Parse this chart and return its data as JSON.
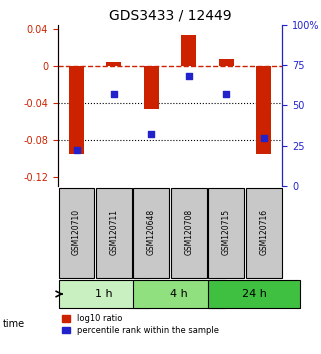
{
  "title": "GDS3433 / 12449",
  "samples": [
    "GSM120710",
    "GSM120711",
    "GSM120648",
    "GSM120708",
    "GSM120715",
    "GSM120716"
  ],
  "log10_ratio": [
    -0.095,
    0.005,
    -0.047,
    0.034,
    0.008,
    -0.095
  ],
  "percentile_rank": [
    22,
    57,
    32,
    68,
    57,
    30
  ],
  "time_groups": [
    {
      "label": "1 h",
      "samples": [
        0,
        1
      ],
      "color": "#c8f0c0"
    },
    {
      "label": "4 h",
      "samples": [
        2,
        3
      ],
      "color": "#90e080"
    },
    {
      "label": "24 h",
      "samples": [
        4,
        5
      ],
      "color": "#40c040"
    }
  ],
  "ylim_left": [
    -0.13,
    0.045
  ],
  "ylim_right": [
    0,
    100
  ],
  "yticks_left": [
    0.04,
    0,
    -0.04,
    -0.08,
    -0.12
  ],
  "yticks_right": [
    100,
    75,
    50,
    25,
    0
  ],
  "bar_color": "#cc2200",
  "dot_color": "#2222cc",
  "background_color": "#ffffff",
  "grid_color": "#000000",
  "dashed_zero_color": "#cc2200",
  "title_color": "#000000",
  "left_axis_color": "#cc2200",
  "right_axis_color": "#2222cc"
}
